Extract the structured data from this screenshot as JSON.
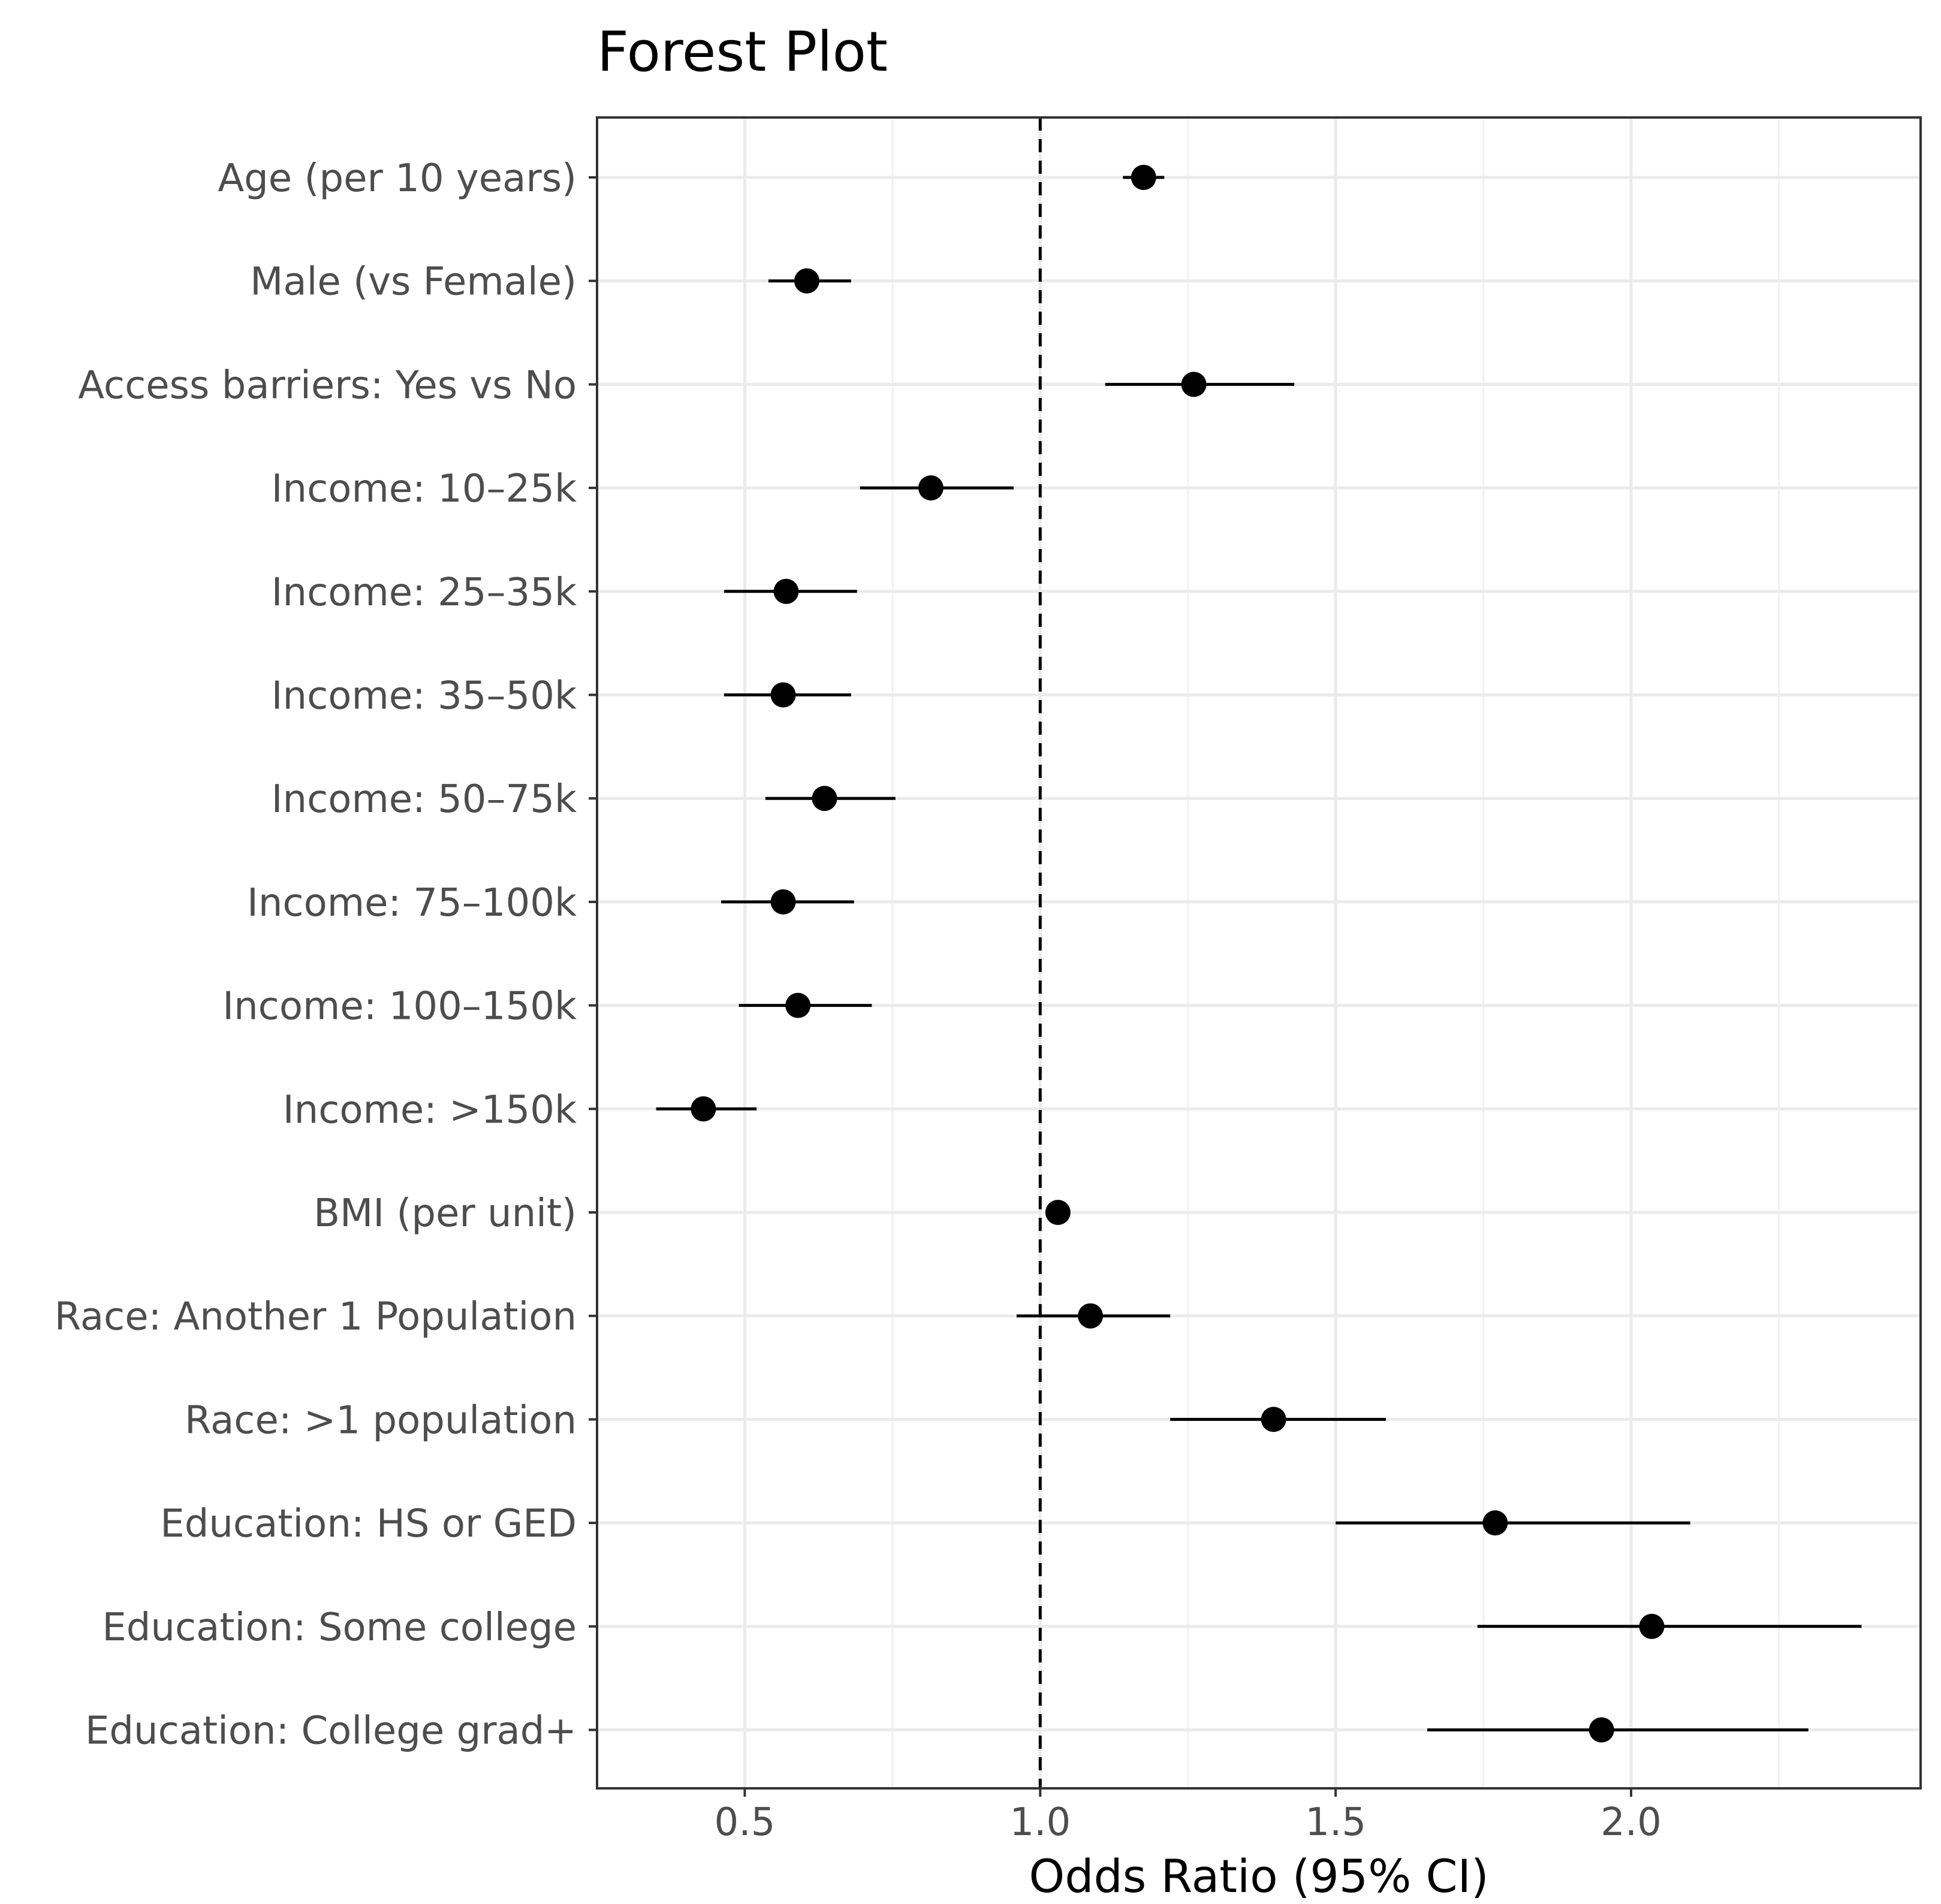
{
  "chart_data": {
    "type": "forest",
    "title": "Forest Plot",
    "xlabel": "Odds Ratio (95% CI)",
    "ylabel": "",
    "xlim": [
      0.25,
      2.49
    ],
    "x_ticks": [
      0.5,
      1.0,
      1.5,
      2.0
    ],
    "x_tick_labels": [
      "0.5",
      "1.0",
      "1.5",
      "2.0"
    ],
    "reference_line": 1.0,
    "grid": true,
    "rows": [
      {
        "label": "Age (per 10 years)",
        "or": 1.175,
        "lower": 1.14,
        "upper": 1.21
      },
      {
        "label": "Male (vs Female)",
        "or": 0.605,
        "lower": 0.54,
        "upper": 0.68
      },
      {
        "label": "Access barriers: Yes vs No",
        "or": 1.26,
        "lower": 1.11,
        "upper": 1.43
      },
      {
        "label": "Income: 10–25k",
        "or": 0.815,
        "lower": 0.695,
        "upper": 0.955
      },
      {
        "label": "Income: 25–35k",
        "or": 0.57,
        "lower": 0.465,
        "upper": 0.69
      },
      {
        "label": "Income: 35–50k",
        "or": 0.565,
        "lower": 0.465,
        "upper": 0.68
      },
      {
        "label": "Income: 50–75k",
        "or": 0.635,
        "lower": 0.535,
        "upper": 0.755
      },
      {
        "label": "Income: 75–100k",
        "or": 0.565,
        "lower": 0.46,
        "upper": 0.685
      },
      {
        "label": "Income: 100–150k",
        "or": 0.59,
        "lower": 0.49,
        "upper": 0.715
      },
      {
        "label": "Income: >150k",
        "or": 0.43,
        "lower": 0.35,
        "upper": 0.52
      },
      {
        "label": "BMI (per unit)",
        "or": 1.03,
        "lower": 1.02,
        "upper": 1.04
      },
      {
        "label": "Race: Another 1 Population",
        "or": 1.085,
        "lower": 0.96,
        "upper": 1.22
      },
      {
        "label": "Race: >1 population",
        "or": 1.395,
        "lower": 1.22,
        "upper": 1.585
      },
      {
        "label": "Education: HS or GED",
        "or": 1.77,
        "lower": 1.5,
        "upper": 2.1
      },
      {
        "label": "Education: Some college",
        "or": 2.035,
        "lower": 1.74,
        "upper": 2.39
      },
      {
        "label": "Education: College grad+",
        "or": 1.95,
        "lower": 1.655,
        "upper": 2.3
      }
    ]
  }
}
